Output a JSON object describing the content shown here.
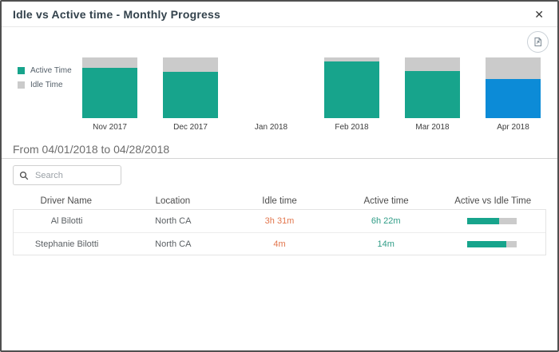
{
  "modal": {
    "title": "Idle vs Active time - Monthly Progress",
    "close_label": "✕"
  },
  "toolbar": {
    "export_button_icon": "export-report-icon"
  },
  "chart_data": {
    "type": "bar",
    "stacked": true,
    "categories": [
      "Nov 2017",
      "Dec 2017",
      "Jan 2018",
      "Feb 2018",
      "Mar 2018",
      "Apr 2018"
    ],
    "series": [
      {
        "name": "Active Time",
        "color": "#17a48c",
        "values_pct": [
          83,
          76,
          0,
          93,
          78,
          64
        ]
      },
      {
        "name": "Idle Time",
        "color": "#cbcbcb",
        "values_pct": [
          17,
          24,
          0,
          7,
          22,
          36
        ]
      }
    ],
    "highlight": {
      "category": "Apr 2018",
      "color": "#0c8bd7"
    },
    "legend_position": "left",
    "ylim": [
      0,
      100
    ],
    "grid": false,
    "title": "Idle vs Active time - Monthly Progress"
  },
  "filters": {
    "date_range": "From 04/01/2018 to 04/28/2018",
    "search_placeholder": "Search"
  },
  "table": {
    "columns": [
      "Driver Name",
      "Location",
      "Idle time",
      "Active time",
      "Active vs Idle Time"
    ],
    "rows": [
      {
        "driver": "Al Bilotti",
        "location": "North CA",
        "idle": "3h 31m",
        "active": "6h 22m",
        "active_pct": 64
      },
      {
        "driver": "Stephanie Bilotti",
        "location": "North CA",
        "idle": "4m",
        "active": "14m",
        "active_pct": 78
      }
    ]
  },
  "colors": {
    "active_teal": "#17a48c",
    "idle_gray": "#cbcbcb",
    "highlight_blue": "#0c8bd7",
    "idle_text_orange": "#e2764d",
    "active_text_teal": "#2f9c86",
    "border_dark": "#4f4f4f"
  }
}
